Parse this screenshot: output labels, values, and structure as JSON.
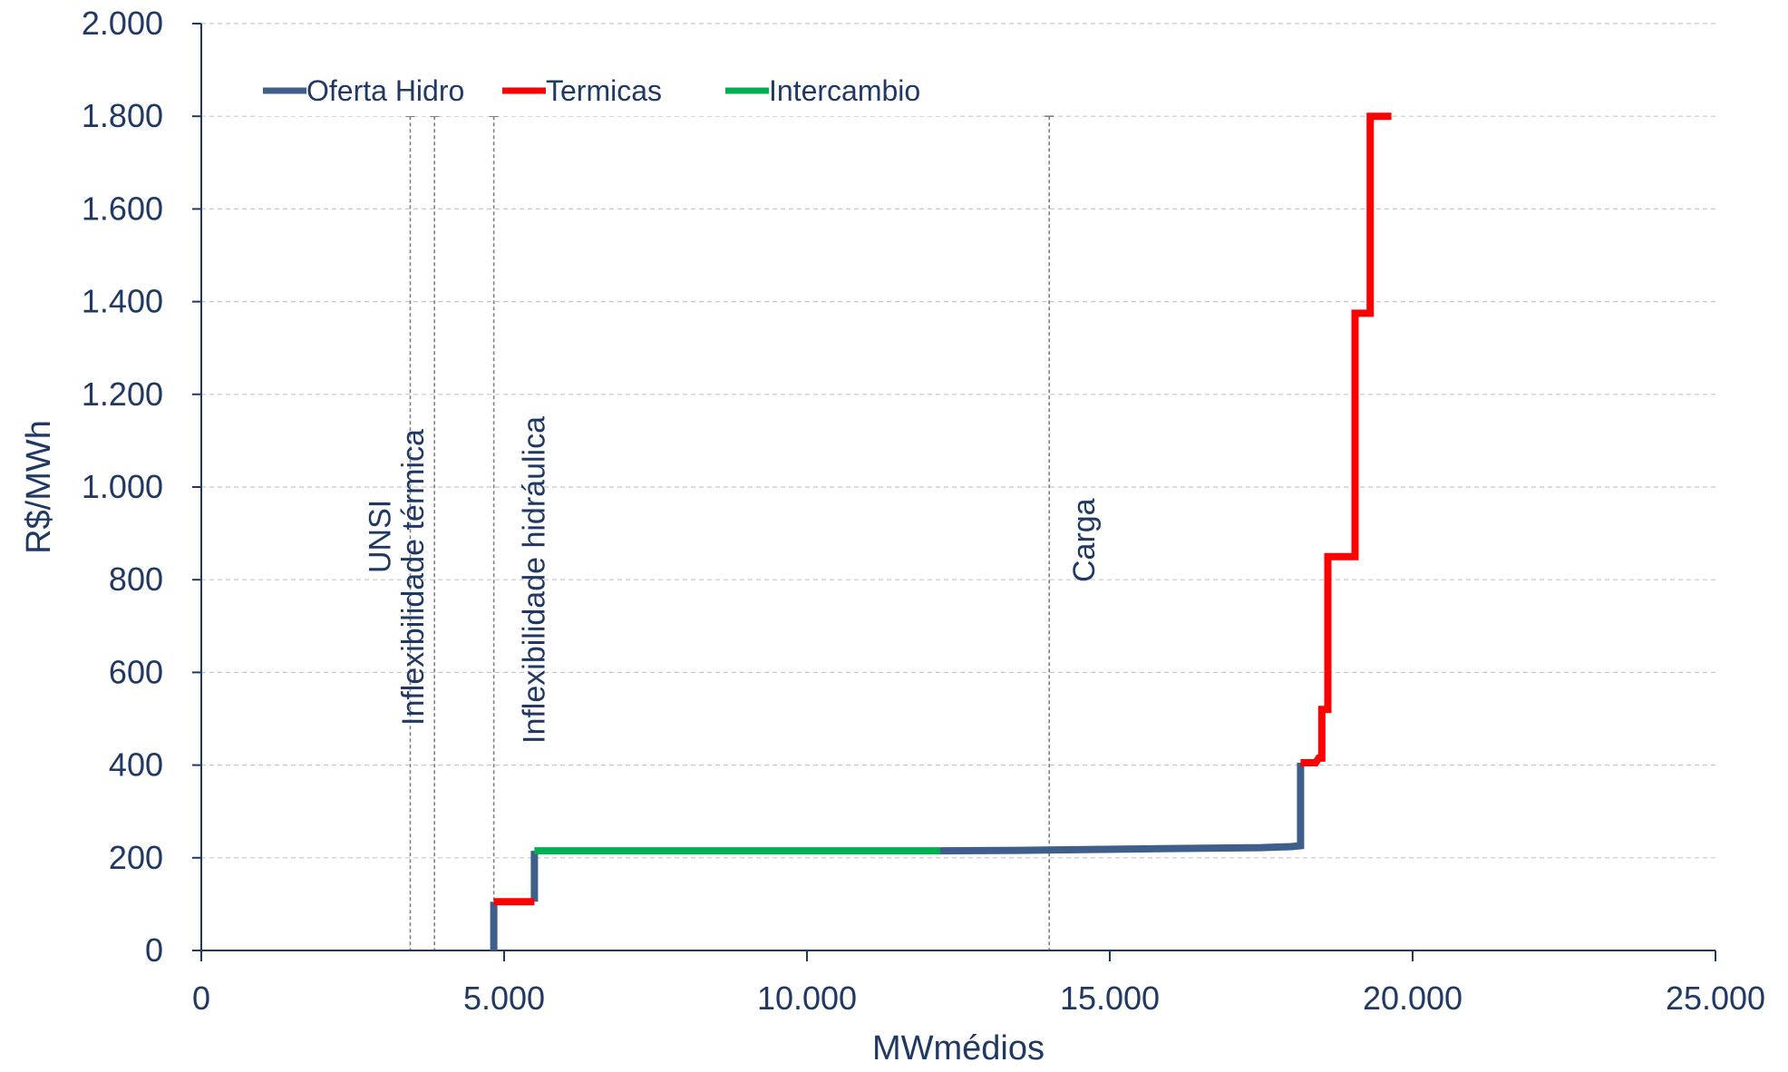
{
  "chart_data": {
    "type": "line",
    "xlabel": "MWmédios",
    "ylabel": "R$/MWh",
    "xlim": [
      0,
      25000
    ],
    "ylim": [
      0,
      2000
    ],
    "x_ticks": [
      {
        "value": 0,
        "label": "0"
      },
      {
        "value": 5000,
        "label": "5.000"
      },
      {
        "value": 10000,
        "label": "10.000"
      },
      {
        "value": 15000,
        "label": "15.000"
      },
      {
        "value": 20000,
        "label": "20.000"
      },
      {
        "value": 25000,
        "label": "25.000"
      }
    ],
    "y_ticks": [
      {
        "value": 0,
        "label": "0"
      },
      {
        "value": 200,
        "label": "200"
      },
      {
        "value": 400,
        "label": "400"
      },
      {
        "value": 600,
        "label": "600"
      },
      {
        "value": 800,
        "label": "800"
      },
      {
        "value": 1000,
        "label": "1.000"
      },
      {
        "value": 1200,
        "label": "1.200"
      },
      {
        "value": 1400,
        "label": "1.400"
      },
      {
        "value": 1600,
        "label": "1.600"
      },
      {
        "value": 1800,
        "label": "1.800"
      },
      {
        "value": 2000,
        "label": "2.000"
      }
    ],
    "grid": true,
    "legend_position": "top-left",
    "series": [
      {
        "name": "Oferta Hidro",
        "color": "#3f5f8a",
        "segments": [
          [
            [
              4830,
              0
            ],
            [
              4830,
              105
            ]
          ],
          [
            [
              5500,
              105
            ],
            [
              5500,
              215
            ]
          ],
          [
            [
              12200,
              215
            ],
            [
              13500,
              216
            ],
            [
              16000,
              220
            ],
            [
              17500,
              222
            ],
            [
              18000,
              224
            ],
            [
              18150,
              226
            ],
            [
              18150,
              405
            ]
          ]
        ]
      },
      {
        "name": "Termicas",
        "color": "#ff0000",
        "segments": [
          [
            [
              4830,
              105
            ],
            [
              5500,
              105
            ]
          ],
          [
            [
              18150,
              405
            ],
            [
              18400,
              405
            ],
            [
              18450,
              415
            ],
            [
              18500,
              415
            ],
            [
              18500,
              520
            ],
            [
              18600,
              520
            ],
            [
              18600,
              850
            ],
            [
              19050,
              850
            ],
            [
              19050,
              1375
            ],
            [
              19300,
              1375
            ],
            [
              19300,
              1800
            ],
            [
              19650,
              1800
            ]
          ]
        ]
      },
      {
        "name": "Intercambio",
        "color": "#00b050",
        "segments": [
          [
            [
              5500,
              215
            ],
            [
              12200,
              215
            ]
          ]
        ]
      }
    ],
    "annotations": [
      {
        "x": 3450,
        "label": "UNSI"
      },
      {
        "x": 3850,
        "label": "Inflexibilidade térmica"
      },
      {
        "x": 4830,
        "label": "Inflexibilidade hidráulica"
      },
      {
        "x": 14000,
        "label": "Carga"
      }
    ]
  }
}
